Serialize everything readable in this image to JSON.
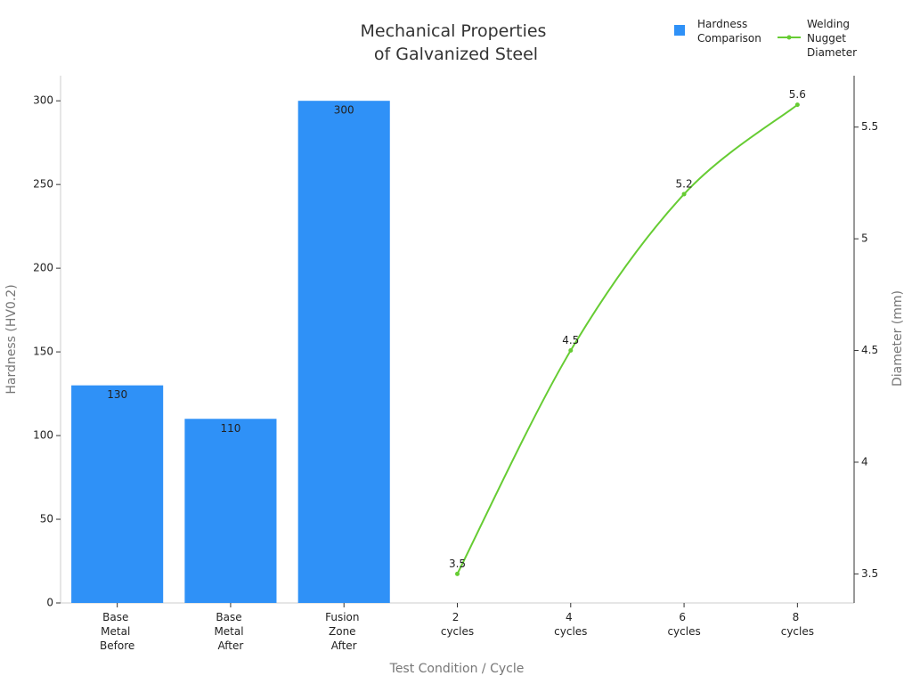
{
  "chart_data": {
    "type": "bar",
    "title": "Mechanical Properties of Galvanized Steel",
    "x_label": "Test Condition / Cycle",
    "y_label": "Hardness (HV0.2)",
    "y2_label": "Diameter (mm)",
    "categories": [
      "Base Metal Before",
      "Base Metal After",
      "Fusion Zone After",
      "2 cycles",
      "4 cycles",
      "6 cycles",
      "8 cycles"
    ],
    "series": [
      {
        "name": "Hardness Comparison",
        "type": "bar",
        "color": "#2f91f7",
        "values": [
          130,
          110,
          300,
          null,
          null,
          null,
          null
        ]
      },
      {
        "name": "Welding Nugget Diameter",
        "type": "line",
        "axis": "y2",
        "color": "#66cc33",
        "values": [
          null,
          null,
          null,
          3.5,
          4.5,
          5.2,
          5.6
        ]
      }
    ],
    "ylim": [
      0,
      315
    ],
    "yticks": [
      0,
      50,
      100,
      150,
      200,
      250,
      300
    ],
    "y2lim": [
      3.37,
      5.73
    ],
    "y2ticks": [
      3.5,
      4,
      4.5,
      5,
      5.5
    ],
    "grid": false,
    "legend": "top-right"
  }
}
